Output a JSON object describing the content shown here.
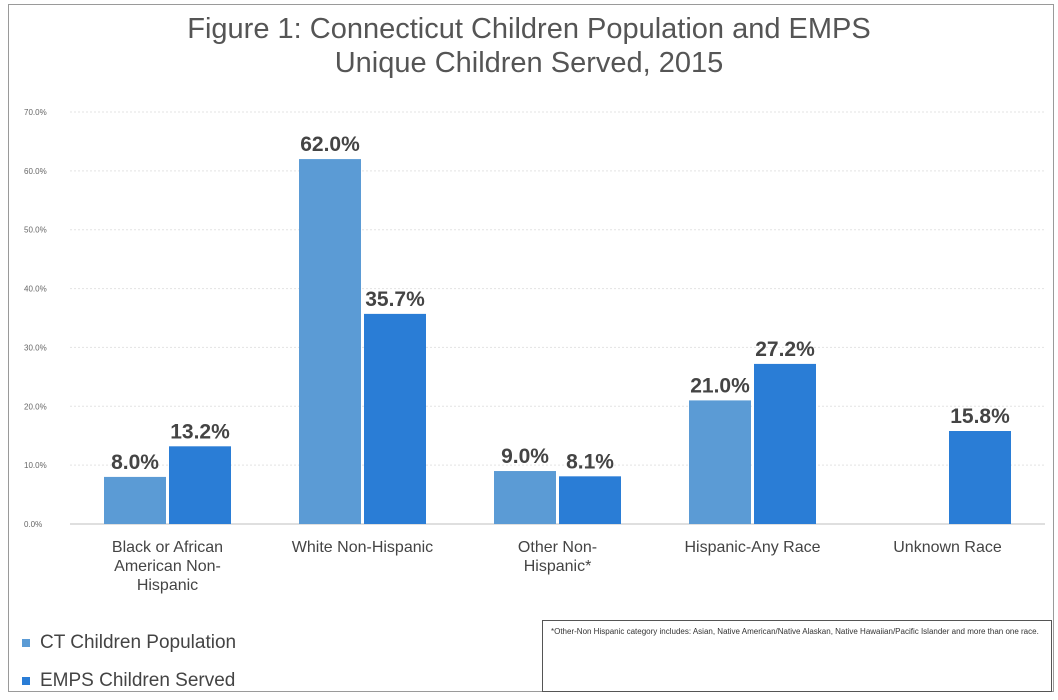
{
  "chart_data": {
    "type": "bar",
    "title": [
      "Figure 1: Connecticut Children Population and EMPS",
      "Unique Children Served, 2015"
    ],
    "categories": [
      [
        "Black or African",
        "American Non-",
        "Hispanic"
      ],
      [
        "White Non-Hispanic"
      ],
      [
        "Other Non-",
        "Hispanic*"
      ],
      [
        "Hispanic-Any Race"
      ],
      [
        "Unknown Race"
      ]
    ],
    "series": [
      {
        "name": "CT Children Population",
        "color": "#5b9bd5",
        "values": [
          8.0,
          62.0,
          9.0,
          21.0,
          null
        ],
        "labels": [
          "8.0%",
          "62.0%",
          "9.0%",
          "21.0%",
          ""
        ]
      },
      {
        "name": "EMPS Children Served",
        "color": "#2a7dd6",
        "values": [
          13.2,
          35.7,
          8.1,
          27.2,
          15.8
        ],
        "labels": [
          "13.2%",
          "35.7%",
          "8.1%",
          "27.2%",
          "15.8%"
        ]
      }
    ],
    "ylim": [
      0,
      70
    ],
    "yticks": [
      "0.0%",
      "10.0%",
      "20.0%",
      "30.0%",
      "40.0%",
      "50.0%",
      "60.0%",
      "70.0%"
    ],
    "grid": true,
    "legend_position": "bottom-left"
  },
  "footnote": "*Other-Non Hispanic category includes: Asian, Native American/Native Alaskan, Native Hawaiian/Pacific Islander and more than one race."
}
